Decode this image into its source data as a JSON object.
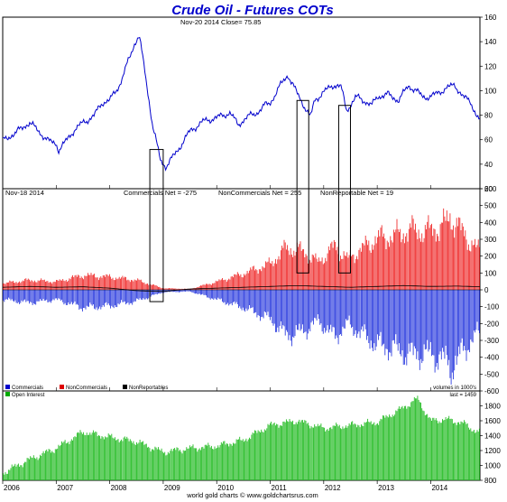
{
  "chart_data": {
    "title": "Crude Oil - Futures COTs",
    "footer": "world gold charts © www.goldchartsrus.com",
    "x_axis": {
      "type": "time",
      "start": 2006.0,
      "end": 2014.92,
      "tick_labels": [
        "2006",
        "2007",
        "2008",
        "2009",
        "2010",
        "2011",
        "2012",
        "2013",
        "2014"
      ]
    },
    "panels": [
      {
        "id": "price",
        "type": "line",
        "annotation": "Nov-20  2014   Close= 75.85",
        "ylim": [
          20,
          160
        ],
        "yticks": [
          "20",
          "40",
          "60",
          "80",
          "100",
          "120",
          "140",
          "160"
        ],
        "color": "#0000cc",
        "series": {
          "x": [
            2006.0,
            2006.25,
            2006.5,
            2006.6,
            2006.85,
            2007.0,
            2007.05,
            2007.3,
            2007.5,
            2007.7,
            2007.85,
            2008.0,
            2008.2,
            2008.45,
            2008.55,
            2008.65,
            2008.8,
            2008.95,
            2009.05,
            2009.25,
            2009.5,
            2009.75,
            2010.0,
            2010.25,
            2010.4,
            2010.55,
            2010.75,
            2010.9,
            2011.0,
            2011.2,
            2011.33,
            2011.5,
            2011.67,
            2011.75,
            2011.83,
            2012.0,
            2012.2,
            2012.33,
            2012.42,
            2012.5,
            2012.6,
            2012.75,
            2012.9,
            2013.0,
            2013.2,
            2013.4,
            2013.58,
            2013.7,
            2013.85,
            2014.0,
            2014.25,
            2014.45,
            2014.6,
            2014.75,
            2014.85,
            2014.92
          ],
          "values": [
            59,
            66,
            74,
            70,
            59,
            57,
            51,
            66,
            74,
            79,
            90,
            92,
            106,
            137,
            145,
            118,
            72,
            43,
            38,
            50,
            67,
            75,
            78,
            82,
            72,
            78,
            82,
            88,
            90,
            105,
            113,
            98,
            85,
            78,
            92,
            99,
            105,
            103,
            84,
            88,
            95,
            92,
            88,
            95,
            97,
            92,
            104,
            101,
            95,
            95,
            101,
            105,
            95,
            91,
            80,
            75.85
          ]
        }
      },
      {
        "id": "cot",
        "type": "bar",
        "annotation_date": "Nov-18  2014",
        "annotation_commercials": "Commercials Net = -275",
        "annotation_noncommercials": "NonCommercials Net = 255",
        "annotation_nonreportable": "NonReportable Net = 19",
        "ylim": [
          -600,
          600
        ],
        "yticks": [
          "-600",
          "-500",
          "-400",
          "-300",
          "-200",
          "-100",
          "0",
          "100",
          "200",
          "300",
          "400",
          "500",
          "600"
        ],
        "unit_note": "volumes in 1000's",
        "legend": [
          "Commercials",
          "NonCommercials",
          "NonReportables"
        ],
        "legend_colors": [
          "#0000cc",
          "#dd0000",
          "#000000"
        ],
        "series": [
          {
            "name": "Commercials",
            "color": "#2233dd",
            "x": [
              2006.0,
              2006.5,
              2007.0,
              2007.5,
              2008.0,
              2008.5,
              2009.0,
              2009.5,
              2010.0,
              2010.5,
              2011.0,
              2011.3,
              2011.6,
              2011.9,
              2012.2,
              2012.45,
              2012.7,
              2013.0,
              2013.3,
              2013.6,
              2013.9,
              2014.2,
              2014.4,
              2014.6,
              2014.85
            ],
            "values": [
              -60,
              -80,
              -60,
              -110,
              -100,
              -70,
              -15,
              -10,
              -60,
              -110,
              -180,
              -280,
              -260,
              -190,
              -290,
              -210,
              -270,
              -340,
              -360,
              -400,
              -390,
              -420,
              -480,
              -380,
              -275
            ]
          },
          {
            "name": "NonCommercials",
            "color": "#ee2222",
            "x": [
              2006.0,
              2006.5,
              2007.0,
              2007.5,
              2008.0,
              2008.5,
              2009.0,
              2009.5,
              2010.0,
              2010.5,
              2011.0,
              2011.3,
              2011.6,
              2011.9,
              2012.2,
              2012.45,
              2012.7,
              2013.0,
              2013.3,
              2013.6,
              2013.9,
              2014.2,
              2014.4,
              2014.6,
              2014.85
            ],
            "values": [
              40,
              60,
              50,
              90,
              80,
              60,
              10,
              5,
              50,
              100,
              160,
              260,
              240,
              170,
              270,
              190,
              250,
              320,
              330,
              370,
              360,
              390,
              450,
              350,
              255
            ]
          },
          {
            "name": "NonReportables",
            "color": "#000000",
            "x": [
              2006.0,
              2006.5,
              2007.0,
              2007.5,
              2008.0,
              2008.5,
              2009.0,
              2009.5,
              2010.0,
              2010.5,
              2011.0,
              2011.5,
              2012.0,
              2012.5,
              2013.0,
              2013.5,
              2014.0,
              2014.5,
              2014.85
            ],
            "values": [
              15,
              20,
              15,
              18,
              10,
              -5,
              -10,
              5,
              10,
              15,
              20,
              25,
              20,
              15,
              20,
              25,
              20,
              22,
              19
            ]
          }
        ]
      },
      {
        "id": "oi",
        "type": "bar",
        "legend": [
          "Open Interest"
        ],
        "legend_colors": [
          "#00aa00"
        ],
        "annotation": "last = 1459",
        "ylim": [
          800,
          2000
        ],
        "yticks": [
          "800",
          "1000",
          "1200",
          "1400",
          "1600",
          "1800"
        ],
        "series": {
          "name": "Open Interest",
          "color": "#22bb22",
          "x": [
            2006.0,
            2006.5,
            2007.0,
            2007.5,
            2008.0,
            2008.5,
            2009.0,
            2009.5,
            2010.0,
            2010.5,
            2011.0,
            2011.5,
            2012.0,
            2012.5,
            2013.0,
            2013.5,
            2013.75,
            2014.0,
            2014.3,
            2014.6,
            2014.85
          ],
          "values": [
            900,
            1080,
            1230,
            1450,
            1380,
            1320,
            1180,
            1230,
            1260,
            1340,
            1540,
            1600,
            1500,
            1540,
            1580,
            1780,
            1900,
            1600,
            1620,
            1570,
            1459
          ]
        }
      }
    ],
    "annotations_boxes": [
      {
        "x0": 2008.75,
        "x1": 2009.0,
        "y_top_price": 52,
        "y_bottom_cot": -70
      },
      {
        "x0": 2011.5,
        "x1": 2011.72,
        "y_top_price": 92,
        "y_bottom_cot": 100
      },
      {
        "x0": 2012.28,
        "x1": 2012.5,
        "y_top_price": 88,
        "y_bottom_cot": 100
      }
    ]
  }
}
